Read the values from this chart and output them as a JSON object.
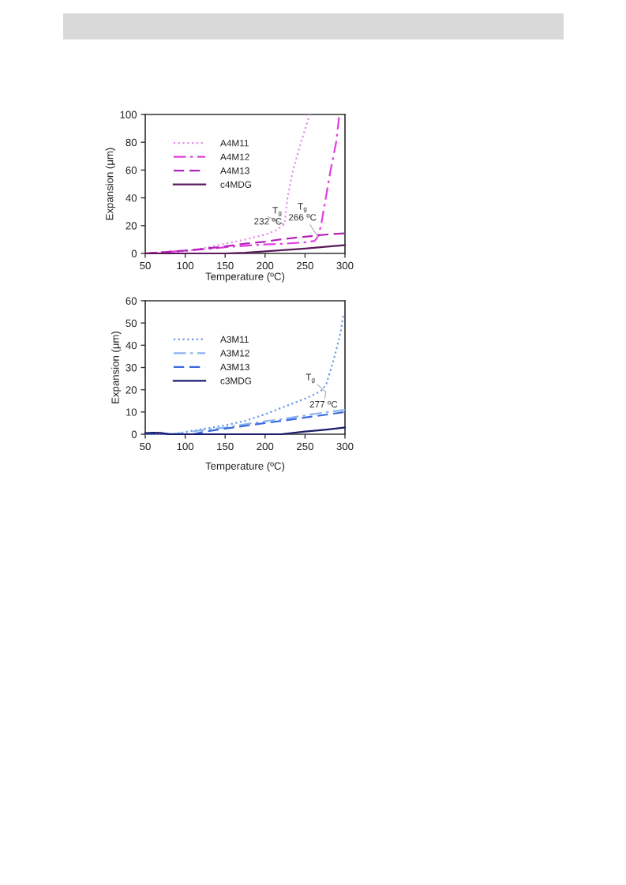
{
  "chart_data": [
    {
      "type": "line",
      "xlabel": "Temperature (ºC)",
      "ylabel": "Expansion (μm)",
      "xlim": [
        50,
        300
      ],
      "ylim": [
        0,
        100
      ],
      "xticks": [
        50,
        100,
        150,
        200,
        250,
        300
      ],
      "yticks": [
        0,
        20,
        40,
        60,
        80,
        100
      ],
      "legend": "top left",
      "series": [
        {
          "name": "A4M11",
          "color": "#e68fe6",
          "line_style": "dotted",
          "x": [
            50,
            75,
            100,
            125,
            150,
            175,
            200,
            215,
            224,
            226,
            228,
            235,
            240,
            245,
            256
          ],
          "values": [
            0,
            0.5,
            1.5,
            4,
            7,
            10,
            13.5,
            17,
            21,
            28,
            40,
            60,
            70,
            80,
            100
          ]
        },
        {
          "name": "A4M12",
          "color": "#e040e0",
          "line_style": "dashdot",
          "x": [
            50,
            75,
            100,
            125,
            150,
            175,
            200,
            225,
            250,
            262,
            266,
            270,
            276,
            282,
            289,
            293
          ],
          "values": [
            0,
            1,
            2,
            3,
            4.5,
            5.5,
            6.5,
            7,
            8,
            9,
            12,
            20,
            40,
            60,
            80,
            100
          ]
        },
        {
          "name": "A4M13",
          "color": "#b423b8",
          "line_style": "dashed",
          "x": [
            50,
            75,
            100,
            125,
            150,
            175,
            200,
            225,
            250,
            275,
            300
          ],
          "values": [
            0,
            1,
            2,
            3.5,
            5,
            7,
            8.5,
            10.5,
            12,
            13.5,
            14.5
          ]
        },
        {
          "name": "c4MDG",
          "color": "#5c1a5c",
          "line_style": "solid",
          "x": [
            50,
            100,
            150,
            175,
            200,
            225,
            250,
            275,
            300
          ],
          "values": [
            0,
            0,
            0,
            0.5,
            1.5,
            2.5,
            3.5,
            4.8,
            6
          ]
        }
      ],
      "annotations": [
        {
          "text": "T$_{g}$\n232 ºC",
          "x": 224,
          "y": 21
        },
        {
          "text": "T$_{g}$\n266 ºC",
          "x": 266,
          "y": 12
        }
      ]
    },
    {
      "type": "line",
      "xlabel": "Temperature (ºC)",
      "ylabel": "Expansion (μm)",
      "xlim": [
        50,
        300
      ],
      "ylim": [
        0,
        60
      ],
      "xticks": [
        50,
        100,
        150,
        200,
        250,
        300
      ],
      "yticks": [
        0,
        10,
        20,
        30,
        40,
        50,
        60
      ],
      "legend": "top left",
      "series": [
        {
          "name": "A3M11",
          "color": "#6a9be8",
          "line_style": "dotted",
          "x": [
            50,
            65,
            80,
            90,
            100,
            125,
            150,
            175,
            200,
            225,
            250,
            265,
            272,
            277,
            283,
            287,
            292,
            295,
            298
          ],
          "values": [
            0.3,
            0.2,
            0,
            0.3,
            1,
            2.5,
            4,
            6,
            9,
            12.5,
            16,
            18.5,
            20,
            23,
            30,
            35,
            42,
            47,
            54
          ]
        },
        {
          "name": "A3M12",
          "color": "#8ab4f0",
          "line_style": "dashdot",
          "x": [
            50,
            65,
            80,
            100,
            125,
            150,
            175,
            200,
            225,
            250,
            275,
            300
          ],
          "values": [
            0.3,
            0.3,
            0,
            0.8,
            2,
            3,
            4.5,
            5.8,
            7,
            8.5,
            9.8,
            11
          ]
        },
        {
          "name": "A3M13",
          "color": "#3a6ae0",
          "line_style": "dashed",
          "x": [
            50,
            70,
            90,
            110,
            125,
            150,
            175,
            200,
            225,
            250,
            275,
            300
          ],
          "values": [
            0.3,
            0.2,
            0,
            0,
            1.2,
            2.5,
            3.8,
            5,
            6.2,
            7.5,
            8.7,
            10
          ]
        },
        {
          "name": "c3MDG",
          "color": "#1c1c6c",
          "line_style": "solid",
          "x": [
            50,
            60,
            70,
            80,
            100,
            150,
            200,
            220,
            250,
            275,
            300
          ],
          "values": [
            0.5,
            0.7,
            0.6,
            0,
            0,
            0,
            0,
            0,
            1.2,
            2,
            3
          ]
        }
      ],
      "annotations": [
        {
          "text": "T$_{g}$",
          "x": 276,
          "y": 19
        },
        {
          "text": "277 ºC",
          "x": 276,
          "y": 19
        }
      ]
    }
  ]
}
